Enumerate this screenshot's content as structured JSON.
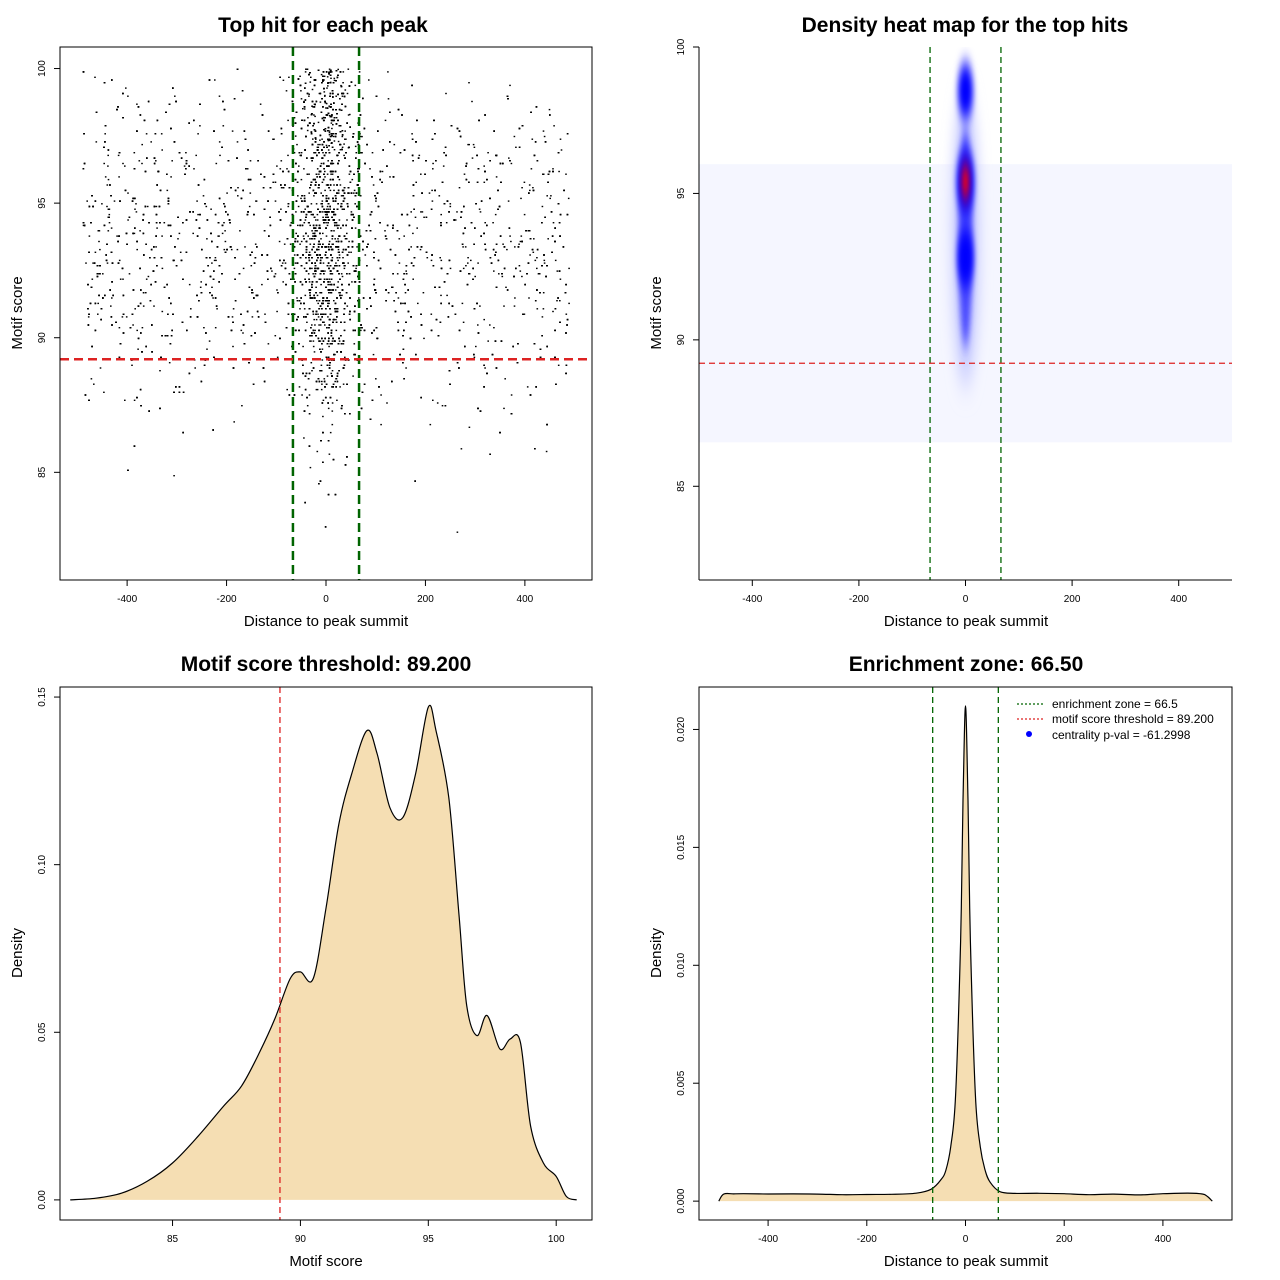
{
  "figure_title": "",
  "chart_data": [
    {
      "id": "scatter",
      "type": "scatter",
      "title": "Top hit for each peak",
      "xlabel": "Distance to peak summit",
      "ylabel": "Motif score",
      "xlim": [
        -535,
        535
      ],
      "ylim": [
        81.0,
        100.8
      ],
      "x_ticks": [
        -400,
        -200,
        0,
        200,
        400
      ],
      "y_ticks": [
        85,
        90,
        95,
        100
      ],
      "x_tick_labels": [
        "-400",
        "-200",
        "0",
        "200",
        "400"
      ],
      "y_tick_labels": [
        "85",
        "90",
        "95",
        "100"
      ],
      "vlines": [
        -66.5,
        66.5
      ],
      "vline_color": "#006400",
      "hline": 89.2,
      "hline_color": "#dd2222",
      "point_color": "#000000",
      "x_range": [
        -490,
        490
      ],
      "y_range": [
        81.8,
        100.0
      ],
      "central_peak_sd": 30
    },
    {
      "id": "heatmap",
      "type": "heatmap",
      "title": "Density heat map for the top hits",
      "xlabel": "Distance to peak summit",
      "ylabel": "Motif score",
      "xlim": [
        -500,
        500
      ],
      "ylim": [
        81.8,
        100.0
      ],
      "x_ticks": [
        -400,
        -200,
        0,
        200,
        400
      ],
      "y_ticks": [
        85,
        90,
        95,
        100
      ],
      "x_tick_labels": [
        "-400",
        "-200",
        "0",
        "200",
        "400"
      ],
      "y_tick_labels": [
        "85",
        "90",
        "95",
        "100"
      ],
      "vlines": [
        -66.5,
        66.5
      ],
      "vline_color": "#006400",
      "hline": 89.2,
      "hline_color": "#dd2222",
      "colors": [
        "#ffffff",
        "#0000ff",
        "#ff0000"
      ],
      "hotspots": [
        {
          "x": 0,
          "y": 95.4,
          "intensity": 1.0
        },
        {
          "x": 0,
          "y": 92.8,
          "intensity": 0.75
        },
        {
          "x": 0,
          "y": 98.5,
          "intensity": 0.6
        }
      ]
    },
    {
      "id": "score-density",
      "type": "area",
      "title": "Motif score threshold: 89.200",
      "xlabel": "Motif score",
      "ylabel": "Density",
      "xlim": [
        80.6,
        101.4
      ],
      "ylim": [
        -0.006,
        0.153
      ],
      "x_ticks": [
        85,
        90,
        95,
        100
      ],
      "y_ticks": [
        0.0,
        0.05,
        0.1,
        0.15
      ],
      "x_tick_labels": [
        "85",
        "90",
        "95",
        "100"
      ],
      "y_tick_labels": [
        "0.00",
        "0.05",
        "0.10",
        "0.15"
      ],
      "fill_color": "#f5deb3",
      "vline": 89.2,
      "vline_color": "#dd2222",
      "x": [
        81,
        82,
        83,
        84,
        85,
        86,
        87,
        87.7,
        88.4,
        89,
        89.6,
        90,
        90.5,
        91,
        91.5,
        92,
        92.6,
        93,
        93.5,
        94,
        94.5,
        95,
        95.3,
        95.8,
        96.2,
        96.5,
        96.9,
        97.3,
        97.8,
        98.2,
        98.6,
        99,
        99.5,
        100,
        100.4,
        100.8
      ],
      "y": [
        0.0,
        0.0005,
        0.002,
        0.0055,
        0.011,
        0.019,
        0.028,
        0.034,
        0.044,
        0.054,
        0.066,
        0.068,
        0.066,
        0.087,
        0.112,
        0.127,
        0.14,
        0.133,
        0.117,
        0.114,
        0.127,
        0.147,
        0.14,
        0.12,
        0.085,
        0.058,
        0.049,
        0.055,
        0.045,
        0.048,
        0.047,
        0.022,
        0.011,
        0.007,
        0.001,
        0.0
      ]
    },
    {
      "id": "distance-density",
      "type": "area",
      "title": "Enrichment zone: 66.50",
      "xlabel": "Distance to peak summit",
      "ylabel": "Density",
      "xlim": [
        -540,
        540
      ],
      "ylim": [
        -0.0008,
        0.0218
      ],
      "x_ticks": [
        -400,
        -200,
        0,
        200,
        400
      ],
      "y_ticks": [
        0.0,
        0.005,
        0.01,
        0.015,
        0.02
      ],
      "x_tick_labels": [
        "-400",
        "-200",
        "0",
        "200",
        "400"
      ],
      "y_tick_labels": [
        "0.000",
        "0.005",
        "0.010",
        "0.015",
        "0.020"
      ],
      "fill_color": "#f5deb3",
      "vlines": [
        -66.5,
        66.5
      ],
      "vline_color": "#006400",
      "x": [
        -500,
        -490,
        -470,
        -450,
        -400,
        -350,
        -300,
        -250,
        -200,
        -150,
        -100,
        -70,
        -50,
        -40,
        -30,
        -20,
        -10,
        -5,
        0,
        5,
        10,
        20,
        30,
        40,
        50,
        70,
        100,
        150,
        200,
        250,
        300,
        350,
        400,
        450,
        480,
        490,
        500
      ],
      "y": [
        0.0,
        0.0003,
        0.0003,
        0.0003,
        0.0003,
        0.0003,
        0.0003,
        0.0003,
        0.0003,
        0.0003,
        0.0003,
        0.0005,
        0.0009,
        0.0013,
        0.0023,
        0.0045,
        0.011,
        0.017,
        0.021,
        0.017,
        0.011,
        0.0045,
        0.0023,
        0.0013,
        0.0008,
        0.0004,
        0.0003,
        0.0003,
        0.0003,
        0.0003,
        0.0003,
        0.0003,
        0.0003,
        0.0003,
        0.0003,
        0.0002,
        0.0
      ],
      "legend": {
        "position": "top-right",
        "entries": [
          {
            "label": "enrichment zone = 66.5",
            "color": "#006400",
            "style": "line"
          },
          {
            "label": "motif score threshold = 89.200",
            "color": "#dd2222",
            "style": "line"
          },
          {
            "label": "centrality p-val = -61.2998",
            "color": "#0000ff",
            "style": "point"
          }
        ]
      }
    }
  ]
}
